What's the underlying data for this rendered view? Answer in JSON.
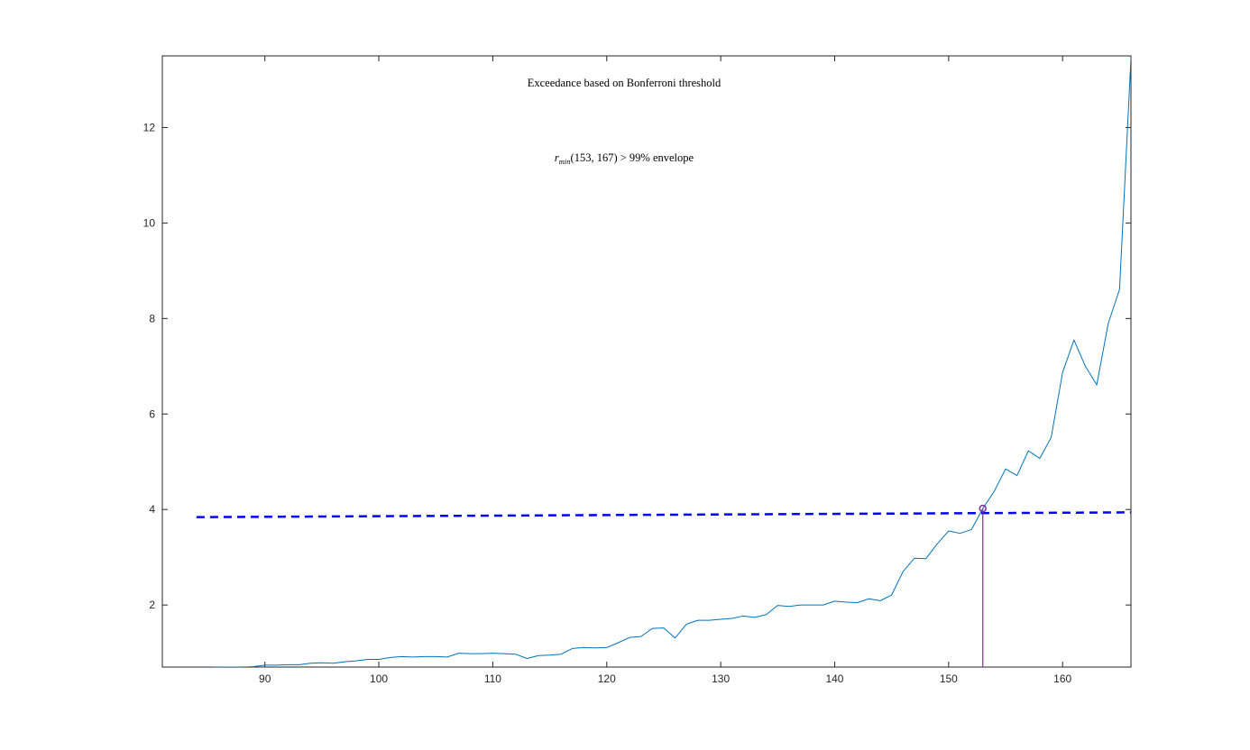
{
  "chart_data": {
    "type": "line",
    "title": "",
    "xlabel": "",
    "ylabel": "",
    "xlim": [
      81,
      166
    ],
    "ylim": [
      0.7,
      13.5
    ],
    "xticks": [
      90,
      100,
      110,
      120,
      130,
      140,
      150,
      160
    ],
    "yticks": [
      2,
      4,
      6,
      8,
      10,
      12
    ],
    "grid": false,
    "annotations": {
      "title_text": "Exceedance based on Bonferroni threshold",
      "envelope_r": "r",
      "envelope_sub": "min",
      "envelope_rest": "(153, 167) > 99% envelope"
    },
    "series": [
      {
        "kind": "line",
        "color": "#0072BD",
        "x": [
          84,
          85,
          86,
          87,
          88,
          89,
          90,
          91,
          92,
          93,
          94,
          95,
          96,
          97,
          98,
          99,
          100,
          101,
          102,
          103,
          104,
          105,
          106,
          107,
          108,
          109,
          110,
          111,
          112,
          113,
          114,
          115,
          116,
          117,
          118,
          119,
          120,
          121,
          122,
          123,
          124,
          125,
          126,
          127,
          128,
          129,
          130,
          131,
          132,
          133,
          134,
          135,
          136,
          137,
          138,
          139,
          140,
          141,
          142,
          143,
          144,
          145,
          146,
          147,
          148,
          149,
          150,
          151,
          152,
          153,
          154,
          155,
          156,
          157,
          158,
          159,
          160,
          161,
          162,
          163,
          164,
          165,
          166
        ],
        "y": [
          0.68,
          0.69,
          0.7,
          0.7,
          0.7,
          0.71,
          0.74,
          0.74,
          0.75,
          0.75,
          0.78,
          0.79,
          0.78,
          0.81,
          0.83,
          0.86,
          0.86,
          0.9,
          0.92,
          0.91,
          0.92,
          0.92,
          0.91,
          0.99,
          0.98,
          0.98,
          0.99,
          0.98,
          0.97,
          0.88,
          0.94,
          0.95,
          0.97,
          1.09,
          1.11,
          1.1,
          1.11,
          1.21,
          1.32,
          1.34,
          1.51,
          1.52,
          1.31,
          1.6,
          1.68,
          1.68,
          1.7,
          1.72,
          1.77,
          1.74,
          1.8,
          1.99,
          1.97,
          2.0,
          2.0,
          2.0,
          2.08,
          2.06,
          2.05,
          2.13,
          2.09,
          2.21,
          2.7,
          2.98,
          2.97,
          3.28,
          3.55,
          3.5,
          3.58,
          4.02,
          4.38,
          4.85,
          4.71,
          5.23,
          5.07,
          5.51,
          6.87,
          7.55,
          7.0,
          6.61,
          7.89,
          8.61,
          13.45
        ]
      },
      {
        "kind": "dashed-threshold",
        "color": "#0000FF",
        "x": [
          84,
          166
        ],
        "y": [
          3.84,
          3.94
        ]
      },
      {
        "kind": "marker-stem",
        "color": "#7E2F8E",
        "x": 153,
        "y": 4.02
      }
    ]
  }
}
